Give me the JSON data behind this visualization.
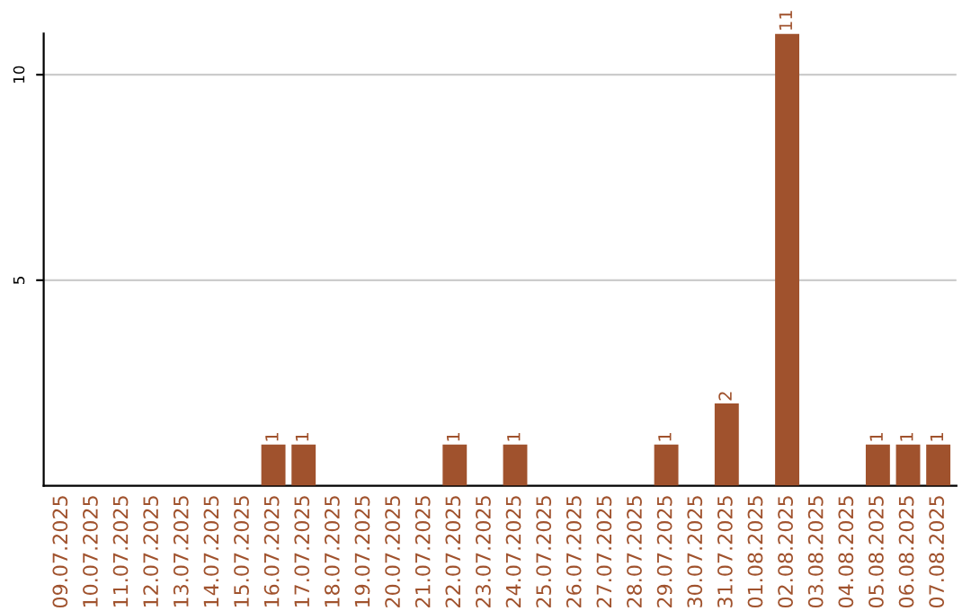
{
  "chart_data": {
    "type": "bar",
    "categories": [
      "09.07.2025",
      "10.07.2025",
      "11.07.2025",
      "12.07.2025",
      "13.07.2025",
      "14.07.2025",
      "15.07.2025",
      "16.07.2025",
      "17.07.2025",
      "18.07.2025",
      "19.07.2025",
      "20.07.2025",
      "21.07.2025",
      "22.07.2025",
      "23.07.2025",
      "24.07.2025",
      "25.07.2025",
      "26.07.2025",
      "27.07.2025",
      "28.07.2025",
      "29.07.2025",
      "30.07.2025",
      "31.07.2025",
      "01.08.2025",
      "02.08.2025",
      "03.08.2025",
      "04.08.2025",
      "05.08.2025",
      "06.08.2025",
      "07.08.2025"
    ],
    "values": [
      0,
      0,
      0,
      0,
      0,
      0,
      0,
      1,
      1,
      0,
      0,
      0,
      0,
      1,
      0,
      1,
      0,
      0,
      0,
      0,
      1,
      0,
      2,
      0,
      11,
      0,
      0,
      1,
      1,
      1
    ],
    "value_labels": [
      null,
      null,
      null,
      null,
      null,
      null,
      null,
      "1",
      "1",
      null,
      null,
      null,
      null,
      "1",
      null,
      "1",
      null,
      null,
      null,
      null,
      "1",
      null,
      "2",
      null,
      "11",
      null,
      null,
      "1",
      "1",
      "1"
    ],
    "color": "#a0522d",
    "ylim": [
      0,
      11
    ],
    "yticks": [
      5,
      10
    ],
    "grid": "y"
  }
}
